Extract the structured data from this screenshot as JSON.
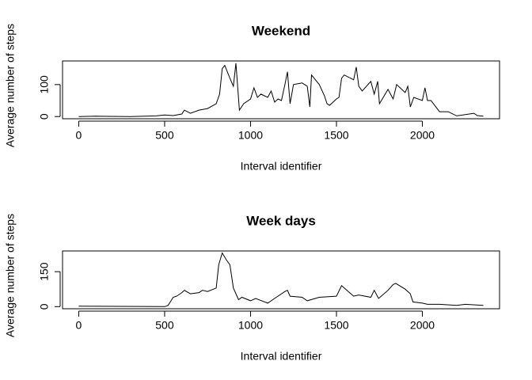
{
  "chart_data": [
    {
      "type": "line",
      "title": "Weekend",
      "xlabel": "Interval identifier",
      "ylabel": "Average number of steps",
      "color": "#000000",
      "x": [
        0,
        100,
        300,
        450,
        500,
        550,
        600,
        615,
        650,
        700,
        750,
        800,
        820,
        835,
        850,
        880,
        900,
        915,
        935,
        960,
        1000,
        1020,
        1040,
        1060,
        1100,
        1120,
        1140,
        1160,
        1180,
        1200,
        1215,
        1230,
        1250,
        1300,
        1330,
        1345,
        1355,
        1400,
        1430,
        1445,
        1460,
        1500,
        1515,
        1530,
        1545,
        1600,
        1615,
        1630,
        1650,
        1700,
        1720,
        1740,
        1750,
        1800,
        1830,
        1850,
        1900,
        1915,
        1930,
        1950,
        2000,
        2015,
        2030,
        2050,
        2100,
        2150,
        2200,
        2300,
        2320,
        2355
      ],
      "values": [
        0,
        1,
        0,
        2,
        5,
        3,
        8,
        20,
        10,
        20,
        25,
        40,
        70,
        150,
        160,
        120,
        95,
        167,
        20,
        40,
        55,
        90,
        60,
        70,
        60,
        80,
        45,
        55,
        50,
        100,
        140,
        40,
        100,
        105,
        95,
        30,
        130,
        100,
        65,
        40,
        35,
        55,
        60,
        120,
        130,
        115,
        155,
        95,
        80,
        110,
        70,
        110,
        40,
        85,
        55,
        100,
        75,
        95,
        30,
        60,
        50,
        90,
        50,
        50,
        15,
        15,
        2,
        10,
        3,
        1
      ],
      "xlim": [
        -94.2,
        2449.2
      ],
      "ylim": [
        -7,
        174
      ],
      "xticks": [
        0,
        500,
        1000,
        1500,
        2000
      ],
      "yticks": [
        0,
        100
      ]
    },
    {
      "type": "line",
      "title": "Week days",
      "xlabel": "Interval identifier",
      "ylabel": "Average number of steps",
      "color": "#000000",
      "x": [
        0,
        500,
        520,
        550,
        570,
        600,
        615,
        650,
        700,
        720,
        750,
        800,
        815,
        835,
        860,
        880,
        900,
        930,
        950,
        1000,
        1030,
        1100,
        1150,
        1200,
        1215,
        1230,
        1300,
        1330,
        1400,
        1500,
        1530,
        1545,
        1600,
        1630,
        1700,
        1720,
        1745,
        1800,
        1830,
        1845,
        1900,
        1930,
        1945,
        2000,
        2030,
        2100,
        2200,
        2250,
        2355
      ],
      "values": [
        2,
        0,
        5,
        40,
        45,
        60,
        70,
        55,
        60,
        70,
        65,
        80,
        180,
        230,
        200,
        180,
        80,
        30,
        40,
        25,
        35,
        15,
        40,
        65,
        70,
        45,
        40,
        25,
        40,
        45,
        90,
        80,
        45,
        50,
        40,
        70,
        35,
        70,
        95,
        100,
        75,
        55,
        20,
        15,
        10,
        10,
        5,
        10,
        5
      ],
      "xlim": [
        -94.2,
        2449.2
      ],
      "ylim": [
        -9.2,
        239
      ],
      "xticks": [
        0,
        500,
        1000,
        1500,
        2000
      ],
      "yticks": [
        0,
        150
      ]
    }
  ]
}
